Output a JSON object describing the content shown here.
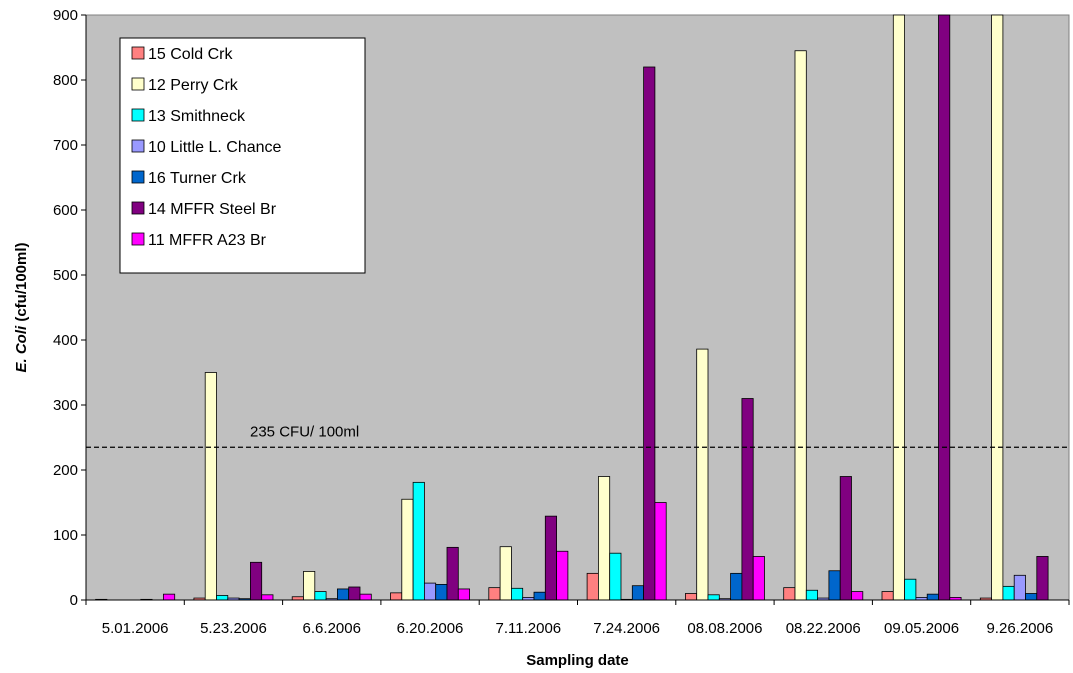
{
  "chart_data": {
    "type": "bar",
    "xlabel": "Sampling date",
    "ylabel_italic": "E. Coli",
    "ylabel_rest": " (cfu/100ml)",
    "ylim": [
      0,
      900
    ],
    "yticks": [
      0,
      100,
      200,
      300,
      400,
      500,
      600,
      700,
      800,
      900
    ],
    "grid": false,
    "legend_position": "top-left",
    "plot_background": "#c0c0c0",
    "categories": [
      "5.01.2006",
      "5.23.2006",
      "6.6.2006",
      "6.20.2006",
      "7.11.2006",
      "7.24.2006",
      "08.08.2006",
      "08.22.2006",
      "09.05.2006",
      "9.26.2006"
    ],
    "series": [
      {
        "name": "15 Cold Crk",
        "color": "#ff8080",
        "values": [
          1,
          3,
          5,
          11,
          19,
          41,
          10,
          19,
          13,
          3
        ]
      },
      {
        "name": "12 Perry Crk",
        "color": "#ffffcc",
        "values": [
          0,
          350,
          44,
          155,
          82,
          190,
          386,
          845,
          900,
          900
        ]
      },
      {
        "name": "13 Smithneck",
        "color": "#00ffff",
        "values": [
          0,
          7,
          13,
          181,
          18,
          72,
          8,
          15,
          32,
          21
        ]
      },
      {
        "name": "10 Little L. Chance",
        "color": "#9999ff",
        "values": [
          0,
          3,
          2,
          26,
          4,
          1,
          2,
          3,
          4,
          38
        ]
      },
      {
        "name": "16 Turner Crk",
        "color": "#0066cc",
        "values": [
          1,
          2,
          17,
          24,
          12,
          22,
          41,
          45,
          9,
          10
        ]
      },
      {
        "name": "14 MFFR Steel Br",
        "color": "#800080",
        "values": [
          0,
          58,
          20,
          81,
          129,
          820,
          310,
          190,
          900,
          67
        ]
      },
      {
        "name": "11 MFFR A23 Br",
        "color": "#ff00ff",
        "values": [
          9,
          8,
          9,
          17,
          75,
          150,
          67,
          13,
          4,
          0
        ]
      }
    ],
    "annotations": [
      {
        "text": "235 CFU/ 100ml",
        "y": 235,
        "style": "dashed"
      }
    ]
  }
}
